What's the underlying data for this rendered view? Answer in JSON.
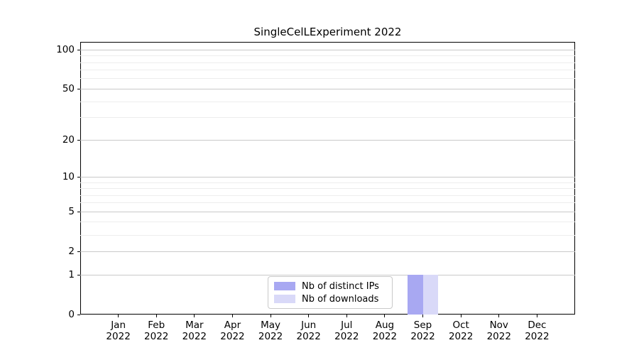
{
  "chart_data": {
    "type": "bar",
    "title": "SingleCelLExperiment 2022",
    "categories": [
      "Jan 2022",
      "Feb 2022",
      "Mar 2022",
      "Apr 2022",
      "May 2022",
      "Jun 2022",
      "Jul 2022",
      "Aug 2022",
      "Sep 2022",
      "Oct 2022",
      "Nov 2022",
      "Dec 2022"
    ],
    "x_tick_months": [
      "Jan",
      "Feb",
      "Mar",
      "Apr",
      "May",
      "Jun",
      "Jul",
      "Aug",
      "Sep",
      "Oct",
      "Nov",
      "Dec"
    ],
    "x_tick_year": "2022",
    "series": [
      {
        "name": "Nb of distinct IPs",
        "color": "#a8a8f2",
        "values": [
          0,
          0,
          0,
          0,
          0,
          0,
          0,
          0,
          1,
          0,
          0,
          0
        ]
      },
      {
        "name": "Nb of downloads",
        "color": "#d9d9f8",
        "values": [
          0,
          0,
          0,
          0,
          0,
          0,
          0,
          0,
          1,
          0,
          0,
          0
        ]
      }
    ],
    "xlabel": "",
    "ylabel": "",
    "yscale": "log1p",
    "ylim": [
      0,
      115
    ],
    "y_major_ticks": [
      0,
      1,
      2,
      5,
      10,
      20,
      50,
      100
    ],
    "y_minor_gridlines": [
      3,
      4,
      6,
      7,
      8,
      9,
      30,
      40,
      60,
      70,
      80,
      90
    ],
    "grid": "horizontal",
    "legend_position": "inside-bottom-center",
    "colors": {
      "major_grid": "#c9c9c9",
      "minor_grid": "#ededed",
      "axis": "#000000",
      "background": "#ffffff",
      "text": "#000000"
    }
  }
}
